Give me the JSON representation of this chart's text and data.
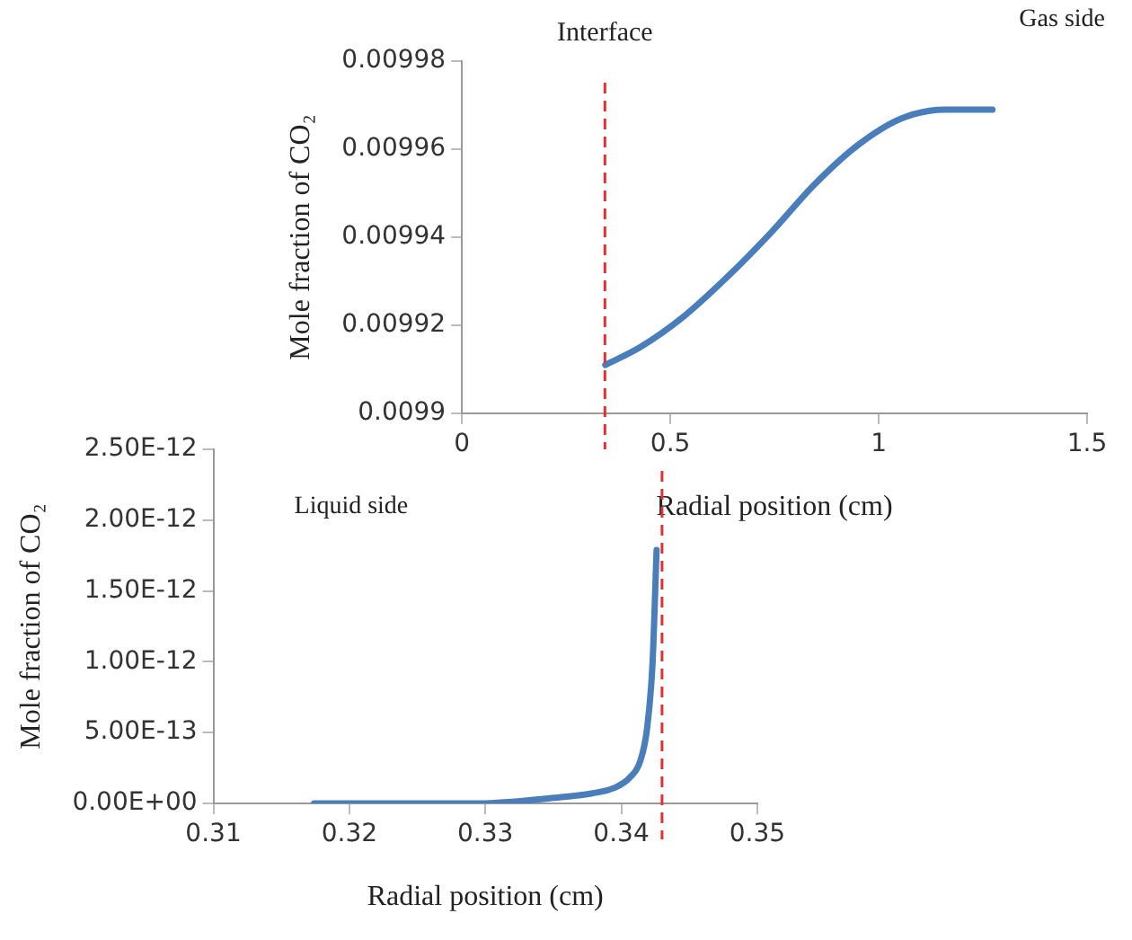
{
  "chart_data": [
    {
      "type": "line",
      "xlabel": "Radial position (cm)",
      "ylabel": "Mole fraction of CO₂",
      "x": [
        0.344,
        0.427,
        0.532,
        0.637,
        0.741,
        0.846,
        0.951,
        1.055,
        1.16,
        1.273
      ],
      "series": [
        {
          "color": "#4a7ebb",
          "values": [
            0.009911,
            0.009915,
            0.009922,
            0.009931,
            0.009941,
            0.009952,
            0.009961,
            0.009967,
            0.009969,
            0.009969
          ]
        }
      ],
      "xlim": [
        0,
        1.5
      ],
      "xticks": [
        0,
        0.5,
        1,
        1.5
      ],
      "ylim": [
        0.0099,
        0.00998
      ],
      "yticks": [
        0.0099,
        0.00992,
        0.00994,
        0.00996,
        0.00998
      ],
      "ref_lines": [
        {
          "axis": "x",
          "value": 0.343,
          "label": "Interface",
          "color": "#e03030",
          "line_style": "dashed"
        }
      ],
      "annotations": [
        "Gas side"
      ],
      "grid": false,
      "legend": false,
      "marker": "none"
    },
    {
      "type": "line",
      "xlabel": "Radial position (cm)",
      "ylabel": "Mole fraction of CO₂",
      "x": [
        0.3174,
        0.3296,
        0.3351,
        0.3378,
        0.3395,
        0.3406,
        0.3414,
        0.3419,
        0.3423,
        0.3426
      ],
      "series": [
        {
          "color": "#4a7ebb",
          "values": [
            0,
            0,
            4e-14,
            7e-14,
            1.1e-13,
            1.8e-13,
            3e-13,
            5.3e-13,
            9.9e-13,
            1.79e-12
          ]
        }
      ],
      "xlim": [
        0.31,
        0.35
      ],
      "xticks": [
        0.31,
        0.32,
        0.33,
        0.34,
        0.35
      ],
      "ylim": [
        0,
        2.5e-12
      ],
      "yticks": [
        {
          "value": 0,
          "label": "0.00E+00"
        },
        {
          "value": 5e-13,
          "label": "5.00E-13"
        },
        {
          "value": 1e-12,
          "label": "1.00E-12"
        },
        {
          "value": 1.5e-12,
          "label": "1.50E-12"
        },
        {
          "value": 2e-12,
          "label": "2.00E-12"
        },
        {
          "value": 2.5e-12,
          "label": "2.50E-12"
        }
      ],
      "ref_lines": [
        {
          "axis": "x",
          "value": 0.343,
          "color": "#e03030",
          "line_style": "dashed"
        }
      ],
      "annotations": [
        "Liquid side"
      ],
      "grid": false,
      "legend": false,
      "marker": "none"
    }
  ]
}
